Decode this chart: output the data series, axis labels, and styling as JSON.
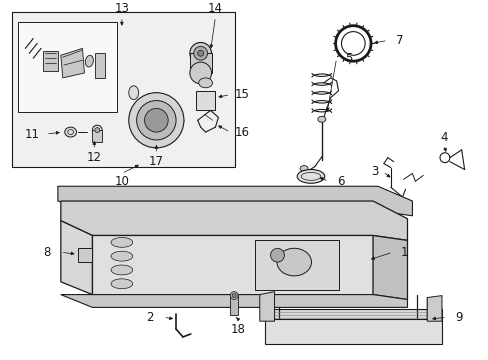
{
  "bg": "#ffffff",
  "lc": "#1a1a1a",
  "gray_fill": "#e8e8e8",
  "gray_med": "#c8c8c8",
  "gray_light": "#f0f0f0",
  "fig_w": 4.89,
  "fig_h": 3.6,
  "dpi": 100
}
